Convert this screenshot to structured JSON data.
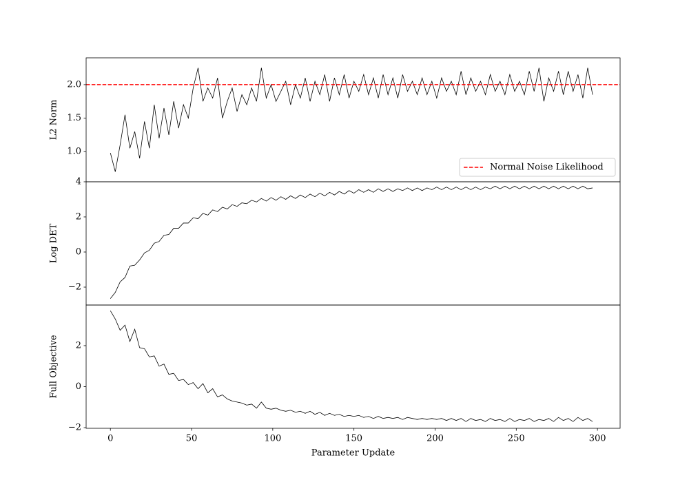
{
  "chart_data": [
    {
      "type": "line",
      "ylabel": "L2 Norm",
      "xlim": [
        -14.95,
        313.95
      ],
      "ylim": [
        0.55,
        2.4
      ],
      "yticks": [
        {
          "value": 1,
          "label": "1.0"
        },
        1.5,
        {
          "value": 2,
          "label": "2.0"
        }
      ],
      "legend": "lower right",
      "hlines": [
        {
          "name": "Normal Noise Likelihood",
          "y": 2,
          "color": "#ff0000",
          "dashed": true
        }
      ],
      "x": [
        0,
        3,
        6,
        9,
        12,
        15,
        18,
        21,
        24,
        27,
        30,
        33,
        36,
        39,
        42,
        45,
        48,
        51,
        54,
        57,
        60,
        63,
        66,
        69,
        72,
        75,
        78,
        81,
        84,
        87,
        90,
        93,
        96,
        99,
        102,
        105,
        108,
        111,
        114,
        117,
        120,
        123,
        126,
        129,
        132,
        135,
        138,
        141,
        144,
        147,
        150,
        153,
        156,
        159,
        162,
        165,
        168,
        171,
        174,
        177,
        180,
        183,
        186,
        189,
        192,
        195,
        198,
        201,
        204,
        207,
        210,
        213,
        216,
        219,
        222,
        225,
        228,
        231,
        234,
        237,
        240,
        243,
        246,
        249,
        252,
        255,
        258,
        261,
        264,
        267,
        270,
        273,
        276,
        279,
        282,
        285,
        288,
        291,
        294,
        297
      ],
      "color": "#000000",
      "values": [
        0.98,
        0.7,
        1.1,
        1.55,
        1.05,
        1.3,
        0.9,
        1.45,
        1.05,
        1.7,
        1.2,
        1.65,
        1.25,
        1.75,
        1.35,
        1.7,
        1.5,
        1.95,
        2.25,
        1.75,
        1.95,
        1.8,
        2.1,
        1.5,
        1.75,
        1.95,
        1.6,
        1.85,
        1.7,
        1.95,
        1.75,
        2.25,
        1.8,
        2.0,
        1.75,
        1.9,
        2.05,
        1.7,
        2.0,
        1.8,
        2.1,
        1.75,
        2.05,
        1.85,
        2.15,
        1.75,
        2.1,
        1.85,
        2.15,
        1.8,
        2.05,
        1.9,
        2.15,
        1.85,
        2.1,
        1.8,
        2.15,
        1.85,
        2.1,
        1.8,
        2.15,
        1.9,
        2.05,
        1.85,
        2.1,
        1.85,
        2.05,
        1.8,
        2.1,
        1.9,
        2.05,
        1.85,
        2.2,
        1.85,
        2.1,
        1.9,
        2.05,
        1.85,
        2.15,
        1.9,
        2.05,
        1.85,
        2.15,
        1.9,
        2.05,
        1.85,
        2.2,
        1.9,
        2.25,
        1.75,
        2.1,
        1.9,
        2.2,
        1.85,
        2.2,
        1.9,
        2.15,
        1.8,
        2.25,
        1.85
      ]
    },
    {
      "type": "line",
      "ylabel": "Log DET",
      "xlim": [
        -14.95,
        313.95
      ],
      "ylim": [
        -3.02,
        4.0
      ],
      "yticks": [
        {
          "value": -2,
          "label": "−2"
        },
        0,
        2,
        4
      ],
      "x": [
        0,
        3,
        6,
        9,
        12,
        15,
        18,
        21,
        24,
        27,
        30,
        33,
        36,
        39,
        42,
        45,
        48,
        51,
        54,
        57,
        60,
        63,
        66,
        69,
        72,
        75,
        78,
        81,
        84,
        87,
        90,
        93,
        96,
        99,
        102,
        105,
        108,
        111,
        114,
        117,
        120,
        123,
        126,
        129,
        132,
        135,
        138,
        141,
        144,
        147,
        150,
        153,
        156,
        159,
        162,
        165,
        168,
        171,
        174,
        177,
        180,
        183,
        186,
        189,
        192,
        195,
        198,
        201,
        204,
        207,
        210,
        213,
        216,
        219,
        222,
        225,
        228,
        231,
        234,
        237,
        240,
        243,
        246,
        249,
        252,
        255,
        258,
        261,
        264,
        267,
        270,
        273,
        276,
        279,
        282,
        285,
        288,
        291,
        294,
        297
      ],
      "color": "#000000",
      "values": [
        -2.65,
        -2.3,
        -1.7,
        -1.45,
        -0.8,
        -0.75,
        -0.45,
        -0.05,
        0.1,
        0.5,
        0.6,
        0.95,
        1.0,
        1.35,
        1.35,
        1.65,
        1.65,
        1.95,
        1.9,
        2.2,
        2.1,
        2.4,
        2.3,
        2.55,
        2.45,
        2.7,
        2.6,
        2.8,
        2.75,
        2.95,
        2.85,
        3.05,
        2.9,
        3.1,
        2.95,
        3.15,
        3.0,
        3.2,
        3.05,
        3.25,
        3.1,
        3.3,
        3.15,
        3.35,
        3.2,
        3.4,
        3.25,
        3.45,
        3.3,
        3.5,
        3.35,
        3.55,
        3.4,
        3.55,
        3.4,
        3.6,
        3.45,
        3.6,
        3.45,
        3.6,
        3.5,
        3.65,
        3.5,
        3.65,
        3.5,
        3.65,
        3.55,
        3.7,
        3.55,
        3.7,
        3.55,
        3.7,
        3.55,
        3.7,
        3.55,
        3.7,
        3.55,
        3.7,
        3.6,
        3.75,
        3.6,
        3.75,
        3.6,
        3.75,
        3.6,
        3.75,
        3.6,
        3.75,
        3.6,
        3.75,
        3.6,
        3.75,
        3.6,
        3.75,
        3.6,
        3.75,
        3.6,
        3.75,
        3.6,
        3.65
      ]
    },
    {
      "type": "line",
      "ylabel": "Full Objective",
      "xlabel": "Parameter Update",
      "xlim": [
        -14.95,
        313.95
      ],
      "ylim": [
        -2.03,
        3.98
      ],
      "yticks": [
        {
          "value": -2,
          "label": "−2"
        },
        0,
        2
      ],
      "xticks": [
        0,
        50,
        100,
        150,
        200,
        250,
        300
      ],
      "x": [
        0,
        3,
        6,
        9,
        12,
        15,
        18,
        21,
        24,
        27,
        30,
        33,
        36,
        39,
        42,
        45,
        48,
        51,
        54,
        57,
        60,
        63,
        66,
        69,
        72,
        75,
        78,
        81,
        84,
        87,
        90,
        93,
        96,
        99,
        102,
        105,
        108,
        111,
        114,
        117,
        120,
        123,
        126,
        129,
        132,
        135,
        138,
        141,
        144,
        147,
        150,
        153,
        156,
        159,
        162,
        165,
        168,
        171,
        174,
        177,
        180,
        183,
        186,
        189,
        192,
        195,
        198,
        201,
        204,
        207,
        210,
        213,
        216,
        219,
        222,
        225,
        228,
        231,
        234,
        237,
        240,
        243,
        246,
        249,
        252,
        255,
        258,
        261,
        264,
        267,
        270,
        273,
        276,
        279,
        282,
        285,
        288,
        291,
        294,
        297
      ],
      "color": "#000000",
      "values": [
        3.7,
        3.3,
        2.75,
        3.0,
        2.2,
        2.8,
        1.9,
        1.85,
        1.45,
        1.5,
        1.0,
        1.1,
        0.6,
        0.65,
        0.3,
        0.35,
        0.1,
        0.2,
        -0.1,
        0.15,
        -0.3,
        -0.1,
        -0.5,
        -0.4,
        -0.6,
        -0.7,
        -0.75,
        -0.8,
        -0.9,
        -0.85,
        -1.05,
        -0.75,
        -1.05,
        -1.1,
        -1.05,
        -1.15,
        -1.2,
        -1.15,
        -1.25,
        -1.2,
        -1.3,
        -1.2,
        -1.35,
        -1.25,
        -1.4,
        -1.3,
        -1.4,
        -1.35,
        -1.45,
        -1.4,
        -1.45,
        -1.4,
        -1.5,
        -1.45,
        -1.55,
        -1.45,
        -1.55,
        -1.5,
        -1.55,
        -1.5,
        -1.6,
        -1.5,
        -1.55,
        -1.6,
        -1.55,
        -1.6,
        -1.55,
        -1.6,
        -1.55,
        -1.65,
        -1.55,
        -1.65,
        -1.55,
        -1.7,
        -1.55,
        -1.65,
        -1.6,
        -1.7,
        -1.55,
        -1.65,
        -1.6,
        -1.7,
        -1.55,
        -1.7,
        -1.6,
        -1.65,
        -1.55,
        -1.7,
        -1.6,
        -1.65,
        -1.55,
        -1.7,
        -1.5,
        -1.65,
        -1.55,
        -1.7,
        -1.5,
        -1.65,
        -1.55,
        -1.7
      ]
    }
  ]
}
